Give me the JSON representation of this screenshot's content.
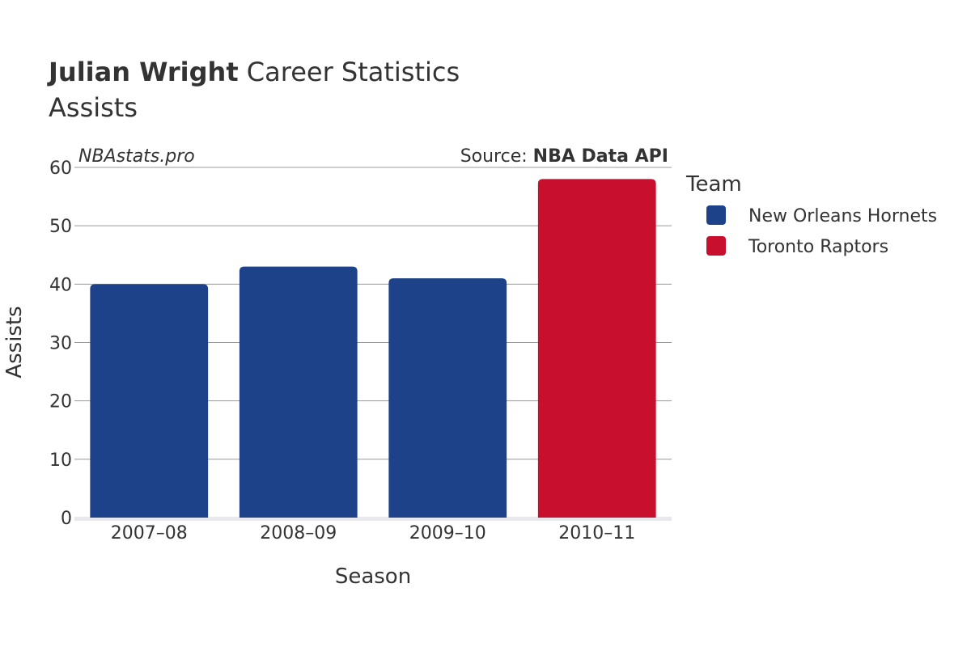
{
  "title": {
    "bold": "Julian Wright",
    "rest": " Career Statistics",
    "subtitle": "Assists"
  },
  "watermark": "NBAstats.pro",
  "source": {
    "prefix": "Source: ",
    "name": "NBA Data API"
  },
  "legend": {
    "title": "Team",
    "placement": "right"
  },
  "colors": {
    "New Orleans Hornets": "#1d428a",
    "Toronto Raptors": "#c8102e",
    "grid": "#999999",
    "baseline": "#e8e8ee",
    "text": "#333333"
  },
  "chart_data": {
    "type": "bar",
    "categories": [
      "2007–08",
      "2008–09",
      "2009–10",
      "2010–11"
    ],
    "values": [
      40,
      43,
      41,
      58
    ],
    "teams": [
      "New Orleans Hornets",
      "New Orleans Hornets",
      "New Orleans Hornets",
      "Toronto Raptors"
    ],
    "series": [
      {
        "name": "New Orleans Hornets"
      },
      {
        "name": "Toronto Raptors"
      }
    ],
    "xlabel": "Season",
    "ylabel": "Assists",
    "ylim": [
      0,
      60
    ],
    "yticks": [
      0,
      10,
      20,
      30,
      40,
      50,
      60
    ],
    "grid": true
  }
}
